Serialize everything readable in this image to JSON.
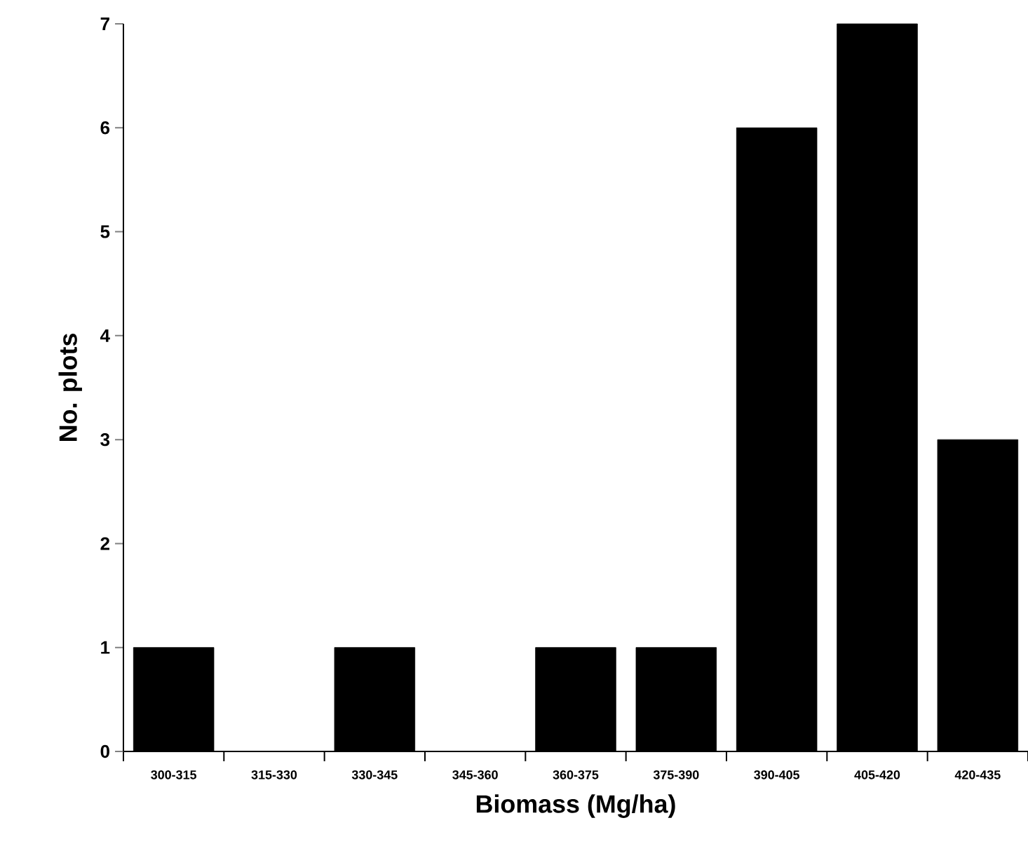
{
  "chart_data": {
    "type": "bar",
    "xlabel": "Biomass (Mg/ha)",
    "ylabel": "No. plots",
    "categories": [
      "300-315",
      "315-330",
      "330-345",
      "345-360",
      "360-375",
      "375-390",
      "390-405",
      "405-420",
      "420-435"
    ],
    "values": [
      1,
      0,
      1,
      0,
      1,
      1,
      6,
      7,
      3
    ],
    "color": "#000000",
    "ylim": [
      0,
      7
    ],
    "yticks": [
      0,
      1,
      2,
      3,
      4,
      5,
      6,
      7
    ]
  }
}
